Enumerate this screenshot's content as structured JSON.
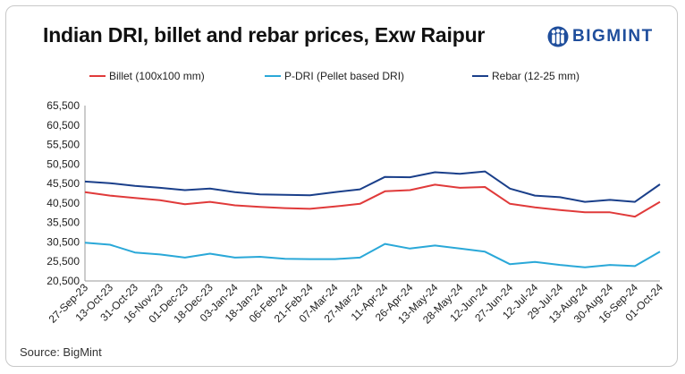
{
  "header": {
    "title": "Indian DRI, billet and rebar prices, Exw Raipur",
    "logo_text": "BIGMINT"
  },
  "footer": {
    "source": "Source: BigMint"
  },
  "colors": {
    "billet": "#e03a3a",
    "pdri": "#2aa8d8",
    "rebar": "#1a3f8a",
    "brand": "#1f4e9c"
  },
  "chart_data": {
    "type": "line",
    "title": "Indian DRI, billet and rebar prices, Exw Raipur",
    "xlabel": "",
    "ylabel": "",
    "ylim": [
      20500,
      65500
    ],
    "yticks": [
      "65,500",
      "60,500",
      "55,500",
      "50,500",
      "45,500",
      "40,500",
      "35,500",
      "30,500",
      "25,500",
      "20,500"
    ],
    "categories": [
      "27-Sep-23",
      "13-Oct-23",
      "31-Oct-23",
      "16-Nov-23",
      "01-Dec-23",
      "18-Dec-23",
      "03-Jan-24",
      "18-Jan-24",
      "06-Feb-24",
      "21-Feb-24",
      "07-Mar-24",
      "27-Mar-24",
      "11-Apr-24",
      "26-Apr-24",
      "13-May-24",
      "28-May-24",
      "12-Jun-24",
      "27-Jun-24",
      "12-Jul-24",
      "29-Jul-24",
      "13-Aug-24",
      "30-Aug-24",
      "16-Sep-24",
      "01-Oct-24"
    ],
    "legend_position": "top",
    "grid": false,
    "series": [
      {
        "name": "Billet (100x100 mm)",
        "color": "#e03a3a",
        "values": [
          43300,
          42400,
          41800,
          41200,
          40200,
          40800,
          39900,
          39500,
          39200,
          39000,
          39600,
          40300,
          43500,
          43800,
          45200,
          44400,
          44600,
          40300,
          39400,
          38700,
          38100,
          38100,
          37000,
          40800
        ]
      },
      {
        "name": "P-DRI (Pellet based DRI)",
        "color": "#2aa8d8",
        "values": [
          30300,
          29800,
          27800,
          27300,
          26500,
          27500,
          26500,
          26700,
          26200,
          26100,
          26100,
          26500,
          30000,
          28800,
          29600,
          28800,
          28000,
          24800,
          25400,
          24600,
          24000,
          24600,
          24300,
          28000
        ]
      },
      {
        "name": "Rebar (12-25 mm)",
        "color": "#1a3f8a",
        "values": [
          46000,
          45600,
          44900,
          44400,
          43800,
          44200,
          43300,
          42700,
          42600,
          42500,
          43300,
          44000,
          47200,
          47100,
          48400,
          48000,
          48600,
          44200,
          42400,
          42000,
          40800,
          41300,
          40800,
          45300
        ]
      }
    ]
  }
}
